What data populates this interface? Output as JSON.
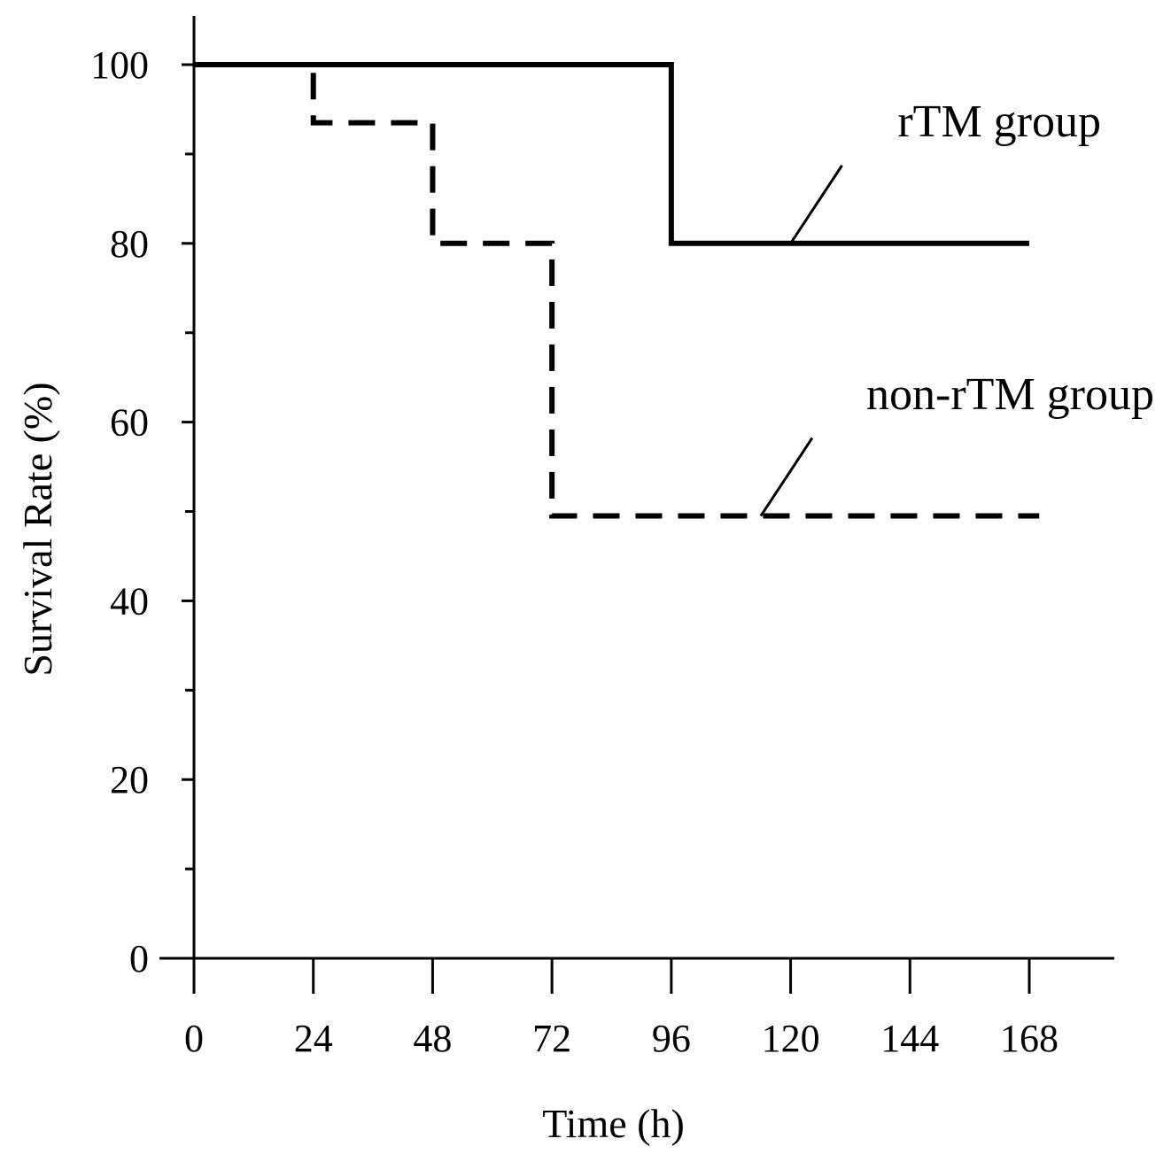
{
  "chart_data": {
    "type": "line",
    "title": "",
    "xlabel": "Time (h)",
    "ylabel": "Survival Rate (%)",
    "xlim": [
      0,
      168
    ],
    "ylim": [
      0,
      100
    ],
    "x_ticks": [
      0,
      24,
      48,
      72,
      96,
      120,
      144,
      168
    ],
    "y_ticks": [
      0,
      20,
      40,
      60,
      80,
      100
    ],
    "grid": false,
    "step": true,
    "series": [
      {
        "name": "rTM group",
        "style": "solid",
        "color": "#000000",
        "x": [
          0,
          96,
          96,
          168
        ],
        "y": [
          100,
          100,
          80,
          80
        ],
        "label_anchor": [
          120,
          80
        ]
      },
      {
        "name": "non-rTM group",
        "style": "dashed",
        "color": "#000000",
        "x": [
          0,
          24,
          24,
          48,
          48,
          72,
          72,
          170
        ],
        "y": [
          100,
          100,
          93.5,
          93.5,
          80,
          80,
          49.5,
          49.5
        ],
        "label_anchor": [
          114,
          49.5
        ]
      }
    ]
  }
}
